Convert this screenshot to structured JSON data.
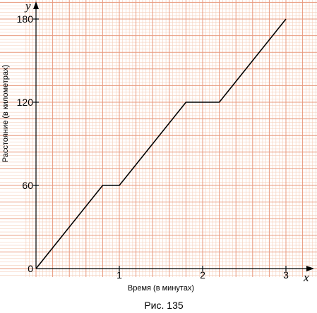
{
  "figure_caption": "Рис. 135",
  "chart_data": {
    "type": "line",
    "xlabel": "Время (в минутах)",
    "ylabel": "Расстояние (в километрах)",
    "x_axis_symbol": "x",
    "y_axis_symbol": "y",
    "xlim": [
      0,
      3.3
    ],
    "ylim": [
      0,
      190
    ],
    "x_ticks": [
      1,
      2,
      3
    ],
    "y_ticks": [
      0,
      60,
      120,
      180
    ],
    "x_tick_labels": [
      "1",
      "2",
      "3"
    ],
    "y_tick_labels": [
      "0",
      "60",
      "120",
      "180"
    ],
    "grid": true,
    "grid_minor_x_step": 0.04,
    "grid_minor_y_step": 2.4,
    "grid_major_x_step": 0.2,
    "grid_major_y_step": 12,
    "series": [
      {
        "x": [
          0,
          0.8,
          1.0,
          1.8,
          2.2,
          3.0
        ],
        "y": [
          0,
          60,
          60,
          120,
          120,
          180
        ]
      }
    ],
    "colors": {
      "grid_minor": "#f4cdb9",
      "grid_major": "#e8987c",
      "axis": "#000000",
      "line": "#000000"
    }
  }
}
